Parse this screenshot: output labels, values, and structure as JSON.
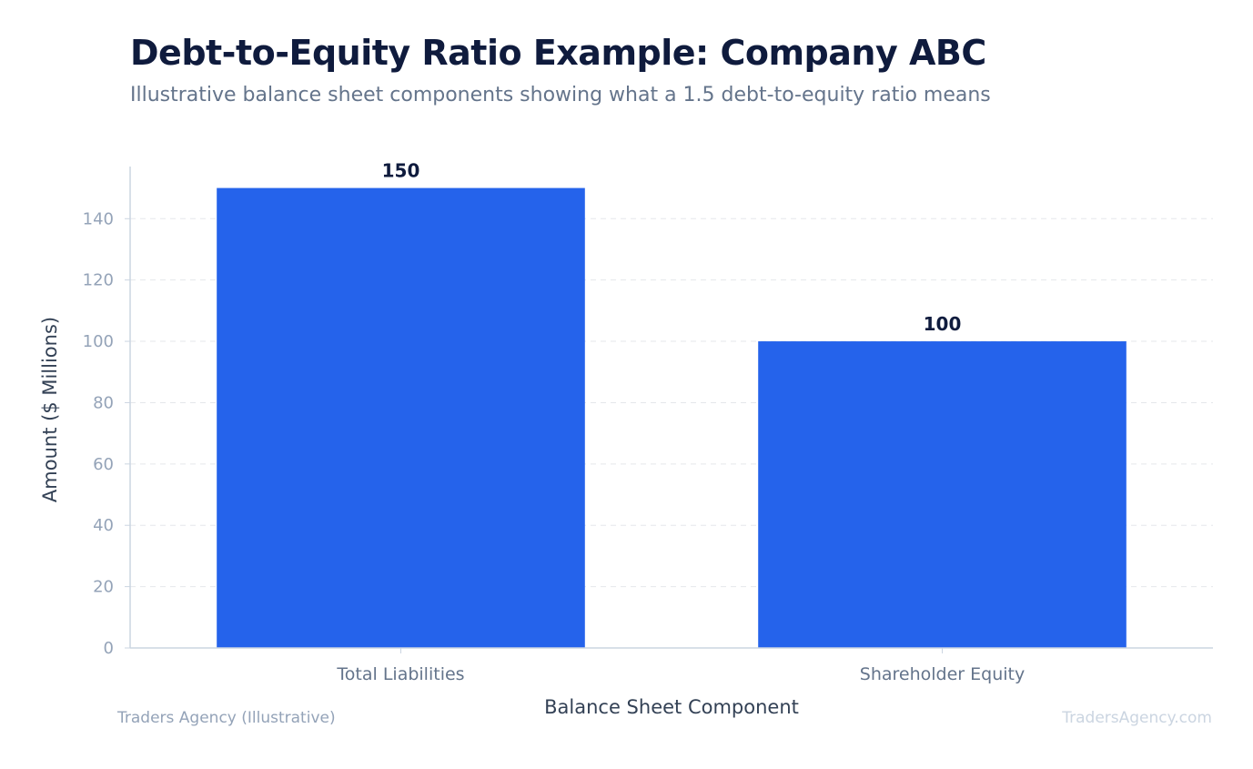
{
  "header": {
    "title": "Debt-to-Equity Ratio Example: Company ABC",
    "subtitle": "Illustrative balance sheet components showing what a 1.5 debt-to-equity ratio means"
  },
  "footer": {
    "source": "Traders Agency (Illustrative)",
    "watermark": "TradersAgency.com"
  },
  "chart_data": {
    "type": "bar",
    "title": "Debt-to-Equity Ratio Example: Company ABC",
    "subtitle": "Illustrative balance sheet components showing what a 1.5 debt-to-equity ratio means",
    "categories": [
      "Total Liabilities",
      "Shareholder Equity"
    ],
    "values": [
      150,
      100
    ],
    "data_labels": [
      "150",
      "100"
    ],
    "xlabel": "Balance Sheet Component",
    "ylabel": "Amount ($ Millions)",
    "ylim": [
      0,
      157
    ],
    "yticks": [
      0,
      20,
      40,
      60,
      80,
      100,
      120,
      140
    ],
    "grid": "horizontal dashed",
    "legend": "none",
    "colors": {
      "bar": "#2563eb",
      "axis": "#cbd5e1",
      "grid": "#e5e7eb"
    }
  }
}
